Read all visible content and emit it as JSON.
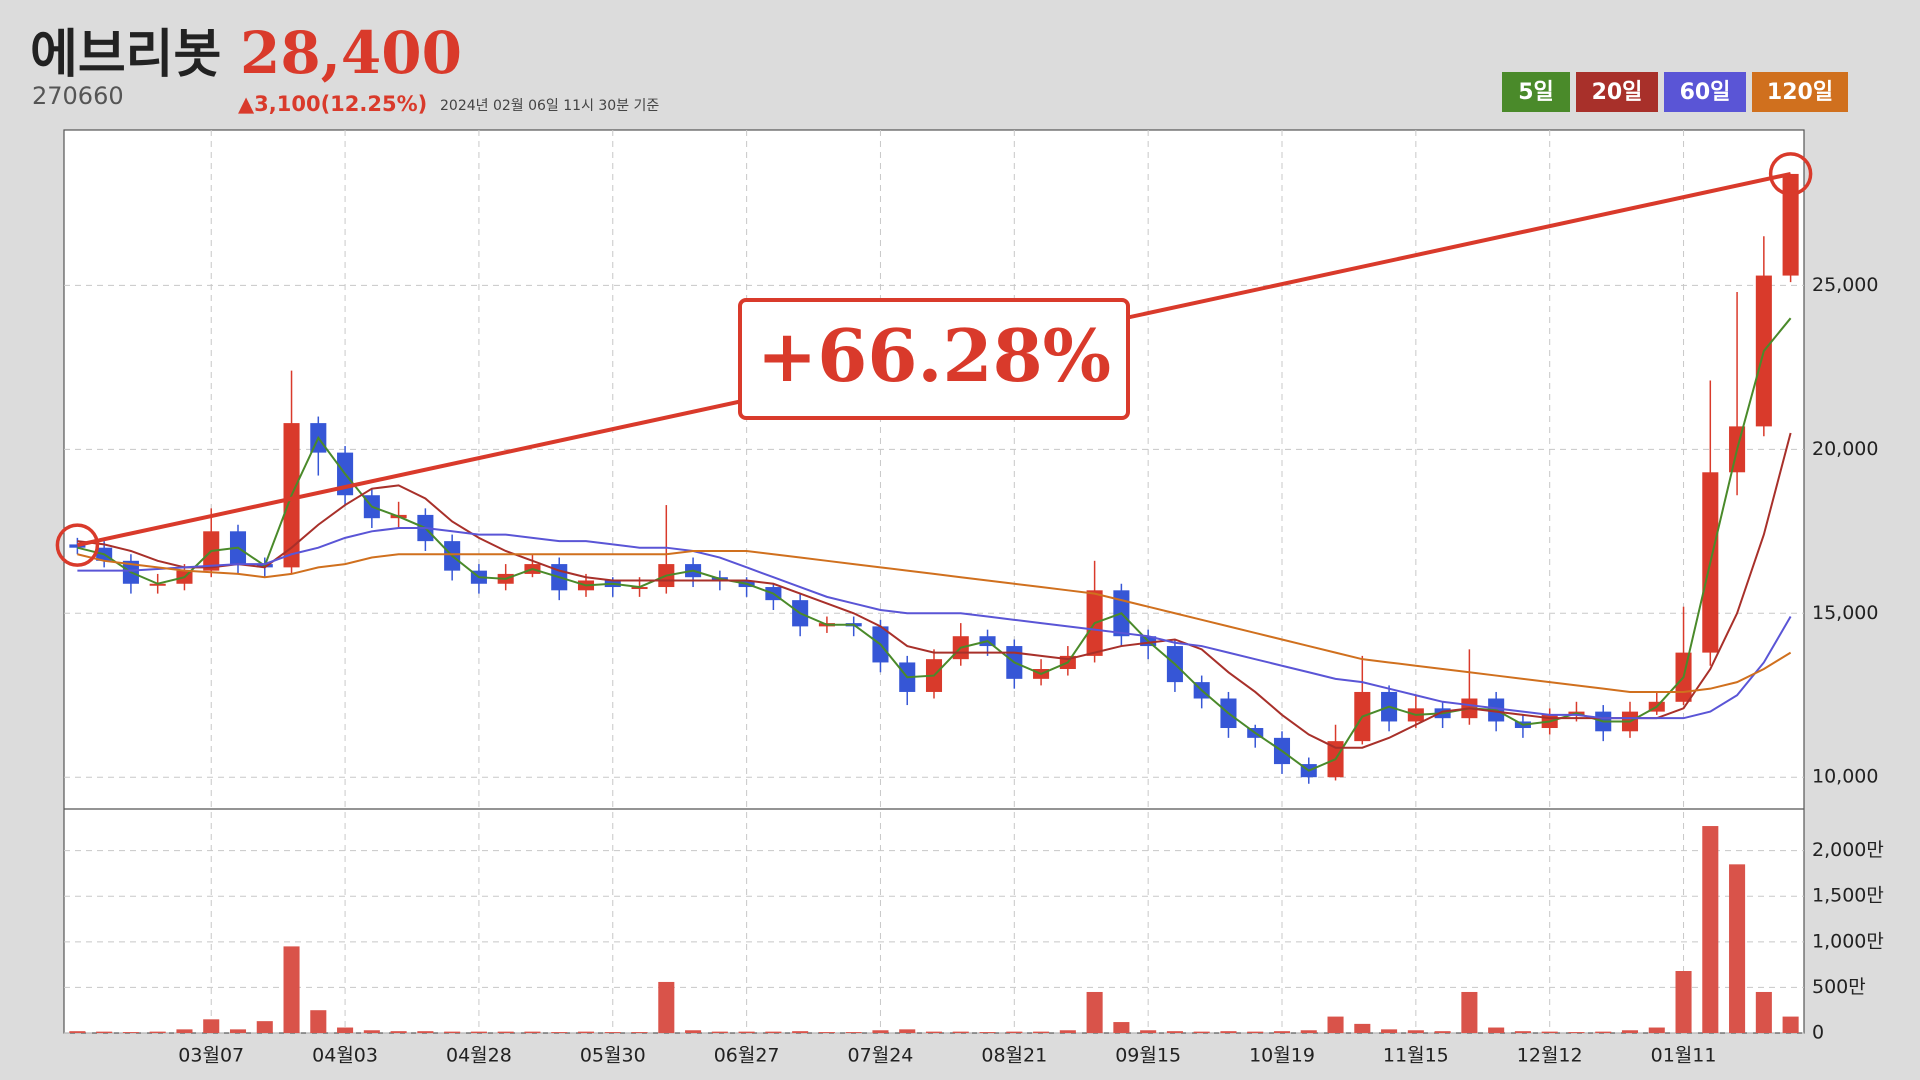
{
  "chart_data": {
    "type": "candlestick",
    "title": "에브리봇",
    "price_label": "28,400",
    "code": "270660",
    "change_label": "▲3,100(12.25%)",
    "timestamp": "2024년 02월 06일 11시 30분 기준",
    "up_color": "#d93a2b",
    "down_color": "#3656d6",
    "grid": true,
    "categories": [
      null,
      null,
      null,
      null,
      null,
      "03월07",
      null,
      null,
      null,
      null,
      "04월03",
      null,
      null,
      null,
      null,
      "04월28",
      null,
      null,
      null,
      null,
      "05월30",
      null,
      null,
      null,
      null,
      "06월27",
      null,
      null,
      null,
      null,
      "07월24",
      null,
      null,
      null,
      null,
      "08월21",
      null,
      null,
      null,
      null,
      "09월15",
      null,
      null,
      null,
      null,
      "10월19",
      null,
      null,
      null,
      null,
      "11월15",
      null,
      null,
      null,
      null,
      "12월12",
      null,
      null,
      null,
      null,
      "01월11",
      null,
      null,
      null,
      null
    ],
    "open": [
      17100,
      17000,
      16600,
      15900,
      15900,
      16300,
      17500,
      16500,
      16400,
      20800,
      19900,
      18600,
      17900,
      18000,
      17200,
      16300,
      15900,
      16200,
      16500,
      15700,
      16000,
      15800,
      15800,
      16500,
      16100,
      16000,
      15800,
      15400,
      14600,
      14700,
      14600,
      13500,
      12600,
      13600,
      14300,
      14000,
      13000,
      13300,
      13700,
      15700,
      14300,
      14000,
      12900,
      12400,
      11500,
      11200,
      10400,
      10000,
      11100,
      12600,
      11700,
      12100,
      11800,
      12400,
      11700,
      11500,
      11900,
      12000,
      11400,
      12000,
      12300,
      13800,
      19300,
      20700,
      25300
    ],
    "high": [
      17300,
      17200,
      16800,
      16200,
      16500,
      18200,
      17700,
      16700,
      22400,
      21000,
      20100,
      18800,
      18400,
      18200,
      17400,
      16500,
      16500,
      16800,
      16700,
      16200,
      16100,
      16100,
      18300,
      16700,
      16300,
      16100,
      15900,
      15600,
      14900,
      14900,
      14800,
      13700,
      13900,
      14700,
      14500,
      14200,
      13600,
      14000,
      16600,
      15900,
      14500,
      14200,
      13100,
      12600,
      11600,
      11400,
      10600,
      11600,
      13700,
      12800,
      12500,
      12300,
      13900,
      12600,
      11900,
      12100,
      12300,
      12200,
      12300,
      12600,
      15200,
      22100,
      24800,
      26500,
      28400
    ],
    "low": [
      16800,
      16400,
      15600,
      15600,
      15700,
      16100,
      16200,
      16100,
      16200,
      19200,
      18300,
      17600,
      17600,
      16900,
      16000,
      15600,
      15700,
      16100,
      15400,
      15500,
      15500,
      15500,
      15600,
      15800,
      15700,
      15500,
      15100,
      14300,
      14400,
      14300,
      13200,
      12200,
      12400,
      13400,
      13700,
      12700,
      12800,
      13100,
      13500,
      14000,
      13600,
      12600,
      12100,
      11200,
      10900,
      10100,
      9800,
      9900,
      11000,
      11400,
      11500,
      11500,
      11600,
      11400,
      11200,
      11300,
      11700,
      11100,
      11200,
      11900,
      12200,
      13400,
      18600,
      20400,
      25100
    ],
    "close": [
      17000,
      16600,
      15900,
      15900,
      16300,
      17500,
      16500,
      16400,
      20800,
      19900,
      18600,
      17900,
      18000,
      17200,
      16300,
      15900,
      16200,
      16500,
      15700,
      16000,
      15800,
      15800,
      16500,
      16100,
      16000,
      15800,
      15400,
      14600,
      14700,
      14600,
      13500,
      12600,
      13600,
      14300,
      14000,
      13000,
      13300,
      13700,
      15700,
      14300,
      14000,
      12900,
      12400,
      11500,
      11200,
      10400,
      10000,
      11100,
      12600,
      11700,
      12100,
      11800,
      12400,
      11700,
      11500,
      11900,
      12000,
      11400,
      12000,
      12300,
      13800,
      19300,
      20700,
      25300,
      28400
    ],
    "volume": [
      20,
      15,
      10,
      15,
      40,
      150,
      40,
      130,
      950,
      250,
      60,
      30,
      20,
      20,
      15,
      15,
      15,
      15,
      10,
      15,
      10,
      10,
      560,
      30,
      15,
      15,
      15,
      20,
      10,
      10,
      30,
      40,
      15,
      15,
      10,
      15,
      15,
      30,
      450,
      120,
      30,
      20,
      15,
      20,
      15,
      20,
      30,
      180,
      100,
      40,
      30,
      20,
      450,
      60,
      20,
      15,
      10,
      15,
      30,
      60,
      680,
      2270,
      1850,
      450,
      180
    ],
    "series": [
      {
        "name": "5일",
        "color": "#4a8a2a",
        "values": [
          17000,
          16800,
          16250,
          15900,
          16100,
          16900,
          17000,
          16450,
          18600,
          20350,
          19250,
          18250,
          17950,
          17600,
          16750,
          16100,
          16050,
          16350,
          16100,
          15850,
          15900,
          15800,
          16150,
          16300,
          16050,
          15900,
          15600,
          15000,
          14650,
          14650,
          14050,
          13050,
          13100,
          13950,
          14150,
          13500,
          13150,
          13500,
          14700,
          15000,
          14150,
          13450,
          12650,
          11950,
          11350,
          10800,
          10200,
          10550,
          11850,
          12150,
          11900,
          11950,
          12100,
          12050,
          11600,
          11700,
          11950,
          11700,
          11700,
          12150,
          13050,
          16550,
          20000,
          23000,
          24000
        ]
      },
      {
        "name": "20일",
        "color": "#a8302a",
        "values": [
          17200,
          17100,
          16900,
          16600,
          16400,
          16400,
          16500,
          16400,
          17000,
          17700,
          18300,
          18800,
          18900,
          18500,
          17800,
          17300,
          16900,
          16600,
          16300,
          16100,
          16000,
          16000,
          16000,
          16000,
          16000,
          16000,
          15900,
          15600,
          15300,
          15000,
          14600,
          14000,
          13800,
          13800,
          13800,
          13800,
          13700,
          13600,
          13800,
          14000,
          14100,
          14200,
          13900,
          13200,
          12600,
          11900,
          11300,
          10900,
          10900,
          11200,
          11600,
          12000,
          12100,
          12000,
          11900,
          11800,
          11800,
          11800,
          11800,
          11800,
          12100,
          13300,
          15000,
          17400,
          20500
        ]
      },
      {
        "name": "60일",
        "color": "#5a55d6",
        "values": [
          16300,
          16300,
          16300,
          16350,
          16400,
          16450,
          16500,
          16500,
          16800,
          17000,
          17300,
          17500,
          17600,
          17600,
          17500,
          17400,
          17400,
          17300,
          17200,
          17200,
          17100,
          17000,
          17000,
          16900,
          16700,
          16400,
          16100,
          15800,
          15500,
          15300,
          15100,
          15000,
          15000,
          15000,
          14900,
          14800,
          14700,
          14600,
          14500,
          14400,
          14300,
          14100,
          14000,
          13800,
          13600,
          13400,
          13200,
          13000,
          12900,
          12700,
          12500,
          12300,
          12200,
          12100,
          12000,
          11900,
          11900,
          11800,
          11800,
          11800,
          11800,
          12000,
          12500,
          13500,
          14900
        ]
      },
      {
        "name": "120일",
        "color": "#d0701e",
        "values": [
          16800,
          16600,
          16500,
          16400,
          16300,
          16250,
          16200,
          16100,
          16200,
          16400,
          16500,
          16700,
          16800,
          16800,
          16800,
          16800,
          16800,
          16800,
          16800,
          16800,
          16800,
          16800,
          16800,
          16900,
          16900,
          16900,
          16800,
          16700,
          16600,
          16500,
          16400,
          16300,
          16200,
          16100,
          16000,
          15900,
          15800,
          15700,
          15600,
          15400,
          15200,
          15000,
          14800,
          14600,
          14400,
          14200,
          14000,
          13800,
          13600,
          13500,
          13400,
          13300,
          13200,
          13100,
          13000,
          12900,
          12800,
          12700,
          12600,
          12600,
          12600,
          12700,
          12900,
          13300,
          13800
        ]
      }
    ],
    "ylim": [
      9030,
      29740
    ],
    "yticks": [
      {
        "value": 10000,
        "label": "10,000"
      },
      {
        "value": 15000,
        "label": "15,000"
      },
      {
        "value": 20000,
        "label": "20,000"
      },
      {
        "value": 25000,
        "label": "25,000"
      }
    ],
    "volume_ylim": [
      0,
      2457
    ],
    "volume_yticks": [
      0,
      {
        "value": 500,
        "label": "500만"
      },
      {
        "value": 1000,
        "label": "1,000만"
      },
      {
        "value": 1500,
        "label": "1,500만"
      },
      {
        "value": 2000,
        "label": "2,000만"
      }
    ],
    "annotation": {
      "label": "+66.28%",
      "from_value": 17080,
      "to_value": 28400,
      "color": "#d93a2b"
    }
  }
}
